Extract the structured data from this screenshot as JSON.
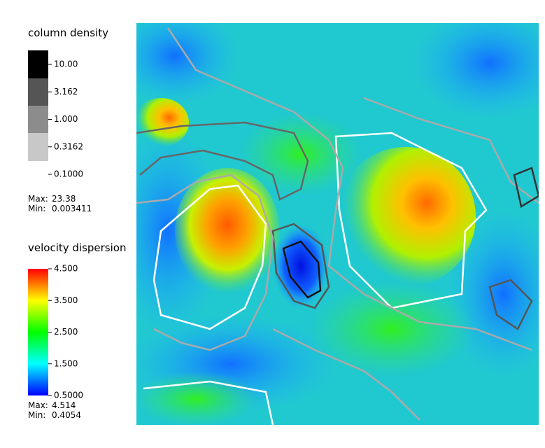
{
  "legends": [
    {
      "title": "column density",
      "scale": "log",
      "ticks": [
        {
          "value": 10,
          "label": "10.00"
        },
        {
          "value": 3.162,
          "label": "3.162"
        },
        {
          "value": 1,
          "label": "1.000"
        },
        {
          "value": 0.3162,
          "label": "0.3162"
        },
        {
          "value": 0.1,
          "label": "0.1000"
        }
      ],
      "max_prefix": "Max:",
      "max": 23.38,
      "min_prefix": "Min:",
      "min": 0.003411
    },
    {
      "title": "velocity dispersion",
      "scale": "linear",
      "ticks": [
        {
          "value": 4.5,
          "label": "4.500"
        },
        {
          "value": 3.5,
          "label": "3.500"
        },
        {
          "value": 2.5,
          "label": "2.500"
        },
        {
          "value": 1.5,
          "label": "1.500"
        },
        {
          "value": 0.5,
          "label": "0.5000"
        }
      ],
      "max_prefix": "Max:",
      "max": 4.514,
      "min_prefix": "Min:",
      "min": 0.4054
    }
  ]
}
